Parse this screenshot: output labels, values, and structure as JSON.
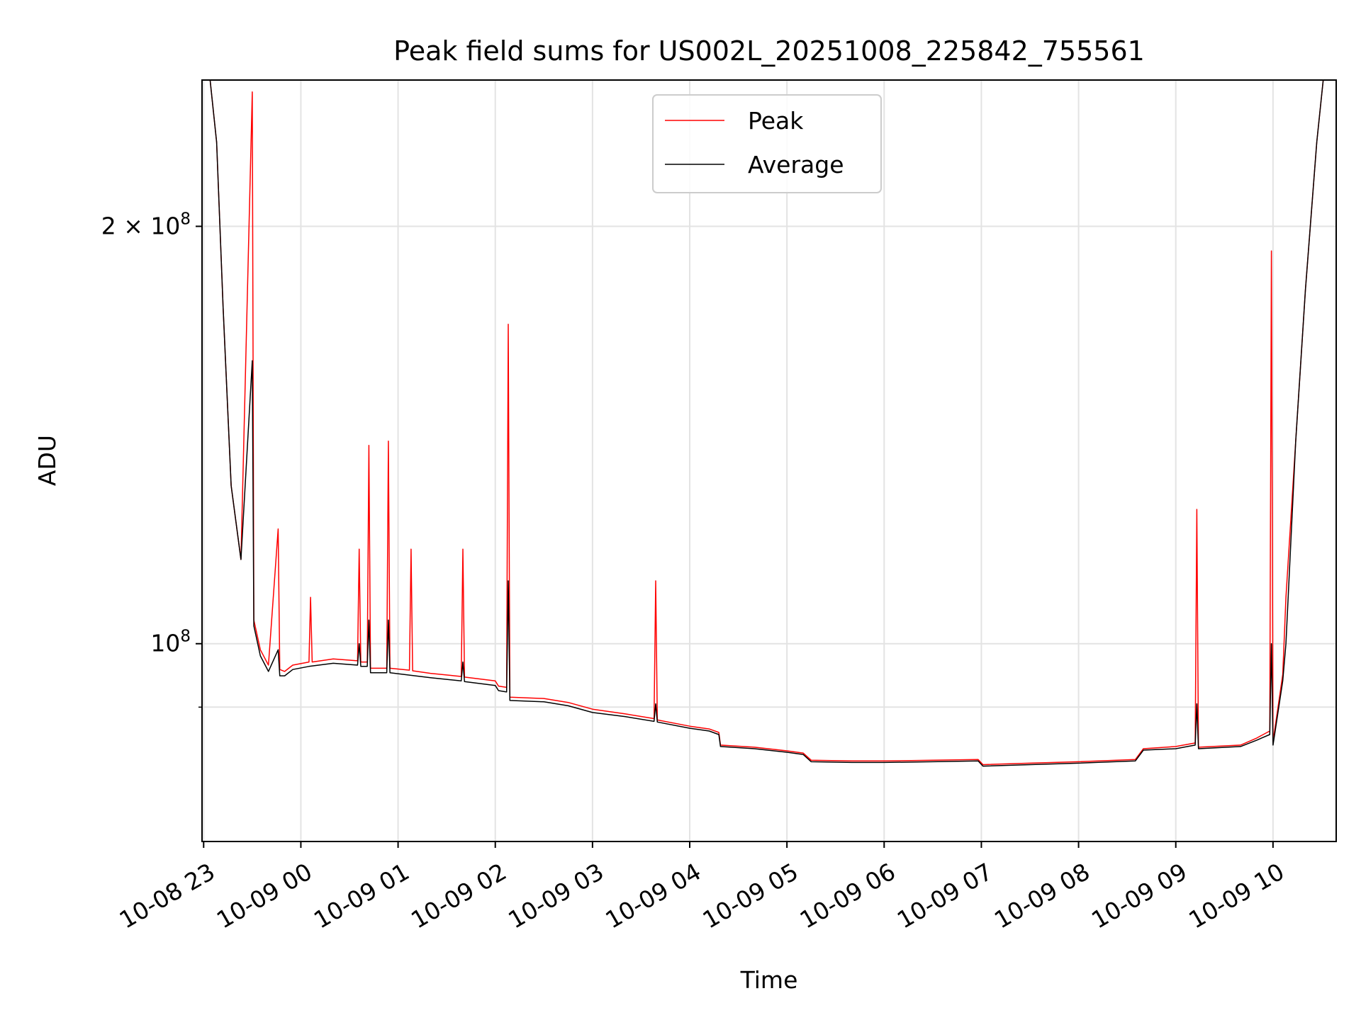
{
  "chart_data": {
    "type": "line",
    "title": "Peak field sums for US002L_20251008_225842_755561",
    "xlabel": "Time",
    "ylabel": "ADU",
    "y_scale": "log",
    "ylim": [
      72000000,
      255000000
    ],
    "xlim": [
      "2025-10-08 22:59",
      "2025-10-09 10:39"
    ],
    "grid": true,
    "legend_position": "upper center",
    "x_ticks": [
      {
        "t": "2025-10-08 23:00",
        "label": "10-08 23"
      },
      {
        "t": "2025-10-09 00:00",
        "label": "10-09 00"
      },
      {
        "t": "2025-10-09 01:00",
        "label": "10-09 01"
      },
      {
        "t": "2025-10-09 02:00",
        "label": "10-09 02"
      },
      {
        "t": "2025-10-09 03:00",
        "label": "10-09 03"
      },
      {
        "t": "2025-10-09 04:00",
        "label": "10-09 04"
      },
      {
        "t": "2025-10-09 05:00",
        "label": "10-09 05"
      },
      {
        "t": "2025-10-09 06:00",
        "label": "10-09 06"
      },
      {
        "t": "2025-10-09 07:00",
        "label": "10-09 07"
      },
      {
        "t": "2025-10-09 08:00",
        "label": "10-09 08"
      },
      {
        "t": "2025-10-09 09:00",
        "label": "10-09 09"
      },
      {
        "t": "2025-10-09 10:00",
        "label": "10-09 10"
      }
    ],
    "y_ticks": [
      {
        "value": 100000000,
        "label_base": "10",
        "label_exp": "8",
        "label_prefix": ""
      },
      {
        "value": 200000000,
        "label_base": "10",
        "label_exp": "8",
        "label_prefix": "2 × "
      }
    ],
    "y_minor_ticks": [
      90000000
    ],
    "series": [
      {
        "name": "Peak",
        "color": "#ff0000",
        "points": [
          [
            "2025-10-08 22:59",
            255000000
          ],
          [
            "2025-10-08 23:04",
            255000000
          ],
          [
            "2025-10-08 23:08",
            230000000
          ],
          [
            "2025-10-08 23:12",
            175000000
          ],
          [
            "2025-10-08 23:17",
            130000000
          ],
          [
            "2025-10-08 23:23",
            115000000
          ],
          [
            "2025-10-08 23:30",
            250000000
          ],
          [
            "2025-10-08 23:31",
            104000000
          ],
          [
            "2025-10-08 23:35",
            99000000
          ],
          [
            "2025-10-08 23:40",
            96500000
          ],
          [
            "2025-10-08 23:46",
            121000000
          ],
          [
            "2025-10-08 23:47",
            95800000
          ],
          [
            "2025-10-08 23:50",
            95500000
          ],
          [
            "2025-10-08 23:55",
            96500000
          ],
          [
            "2025-10-09 00:05",
            97000000
          ],
          [
            "2025-10-09 00:06",
            108000000
          ],
          [
            "2025-10-09 00:07",
            97000000
          ],
          [
            "2025-10-09 00:20",
            97500000
          ],
          [
            "2025-10-09 00:35",
            97200000
          ],
          [
            "2025-10-09 00:36",
            117000000
          ],
          [
            "2025-10-09 00:37",
            97000000
          ],
          [
            "2025-10-09 00:41",
            97000000
          ],
          [
            "2025-10-09 00:42",
            139000000
          ],
          [
            "2025-10-09 00:43",
            96000000
          ],
          [
            "2025-10-09 00:53",
            96000000
          ],
          [
            "2025-10-09 00:54",
            140000000
          ],
          [
            "2025-10-09 00:55",
            96000000
          ],
          [
            "2025-10-09 01:07",
            95700000
          ],
          [
            "2025-10-09 01:08",
            117000000
          ],
          [
            "2025-10-09 01:09",
            95600000
          ],
          [
            "2025-10-09 01:20",
            95200000
          ],
          [
            "2025-10-09 01:35",
            94800000
          ],
          [
            "2025-10-09 01:39",
            94700000
          ],
          [
            "2025-10-09 01:40",
            117000000
          ],
          [
            "2025-10-09 01:41",
            94600000
          ],
          [
            "2025-10-09 02:00",
            94000000
          ],
          [
            "2025-10-09 02:02",
            93200000
          ],
          [
            "2025-10-09 02:07",
            93000000
          ],
          [
            "2025-10-09 02:08",
            170000000
          ],
          [
            "2025-10-09 02:09",
            91500000
          ],
          [
            "2025-10-09 02:30",
            91300000
          ],
          [
            "2025-10-09 02:45",
            90700000
          ],
          [
            "2025-10-09 03:00",
            89700000
          ],
          [
            "2025-10-09 03:20",
            89000000
          ],
          [
            "2025-10-09 03:38",
            88300000
          ],
          [
            "2025-10-09 03:39",
            111000000
          ],
          [
            "2025-10-09 03:40",
            88100000
          ],
          [
            "2025-10-09 04:00",
            87200000
          ],
          [
            "2025-10-09 04:12",
            86800000
          ],
          [
            "2025-10-09 04:18",
            86300000
          ],
          [
            "2025-10-09 04:19",
            84500000
          ],
          [
            "2025-10-09 04:40",
            84200000
          ],
          [
            "2025-10-09 05:00",
            83700000
          ],
          [
            "2025-10-09 05:10",
            83400000
          ],
          [
            "2025-10-09 05:15",
            82400000
          ],
          [
            "2025-10-09 05:40",
            82300000
          ],
          [
            "2025-10-09 06:00",
            82300000
          ],
          [
            "2025-10-09 06:30",
            82400000
          ],
          [
            "2025-10-09 06:58",
            82500000
          ],
          [
            "2025-10-09 07:01",
            81800000
          ],
          [
            "2025-10-09 07:30",
            82000000
          ],
          [
            "2025-10-09 08:00",
            82200000
          ],
          [
            "2025-10-09 08:35",
            82500000
          ],
          [
            "2025-10-09 08:40",
            84000000
          ],
          [
            "2025-10-09 09:00",
            84300000
          ],
          [
            "2025-10-09 09:12",
            84800000
          ],
          [
            "2025-10-09 09:13",
            125000000
          ],
          [
            "2025-10-09 09:14",
            84200000
          ],
          [
            "2025-10-09 09:40",
            84500000
          ],
          [
            "2025-10-09 09:50",
            85500000
          ],
          [
            "2025-10-09 09:58",
            86500000
          ],
          [
            "2025-10-09 09:59",
            192000000
          ],
          [
            "2025-10-09 10:00",
            85000000
          ],
          [
            "2025-10-09 10:06",
            95000000
          ],
          [
            "2025-10-09 10:08",
            108000000
          ],
          [
            "2025-10-09 10:14",
            140000000
          ],
          [
            "2025-10-09 10:20",
            180000000
          ],
          [
            "2025-10-09 10:27",
            230000000
          ],
          [
            "2025-10-09 10:31",
            255000000
          ],
          [
            "2025-10-09 10:39",
            255000000
          ]
        ]
      },
      {
        "name": "Average",
        "color": "#000000",
        "points": [
          [
            "2025-10-08 22:59",
            255000000
          ],
          [
            "2025-10-08 23:04",
            255000000
          ],
          [
            "2025-10-08 23:08",
            230000000
          ],
          [
            "2025-10-08 23:12",
            175000000
          ],
          [
            "2025-10-08 23:17",
            130000000
          ],
          [
            "2025-10-08 23:23",
            115000000
          ],
          [
            "2025-10-08 23:30",
            160000000
          ],
          [
            "2025-10-08 23:31",
            103000000
          ],
          [
            "2025-10-08 23:35",
            98000000
          ],
          [
            "2025-10-08 23:40",
            95500000
          ],
          [
            "2025-10-08 23:46",
            99000000
          ],
          [
            "2025-10-08 23:47",
            94800000
          ],
          [
            "2025-10-08 23:50",
            94800000
          ],
          [
            "2025-10-08 23:55",
            95800000
          ],
          [
            "2025-10-09 00:05",
            96300000
          ],
          [
            "2025-10-09 00:20",
            96800000
          ],
          [
            "2025-10-09 00:35",
            96500000
          ],
          [
            "2025-10-09 00:36",
            100000000
          ],
          [
            "2025-10-09 00:37",
            96300000
          ],
          [
            "2025-10-09 00:41",
            96300000
          ],
          [
            "2025-10-09 00:42",
            104000000
          ],
          [
            "2025-10-09 00:43",
            95300000
          ],
          [
            "2025-10-09 00:53",
            95300000
          ],
          [
            "2025-10-09 00:54",
            104000000
          ],
          [
            "2025-10-09 00:55",
            95300000
          ],
          [
            "2025-10-09 01:20",
            94500000
          ],
          [
            "2025-10-09 01:39",
            94000000
          ],
          [
            "2025-10-09 01:40",
            97000000
          ],
          [
            "2025-10-09 01:41",
            93900000
          ],
          [
            "2025-10-09 02:00",
            93300000
          ],
          [
            "2025-10-09 02:02",
            92500000
          ],
          [
            "2025-10-09 02:07",
            92300000
          ],
          [
            "2025-10-09 02:08",
            111000000
          ],
          [
            "2025-10-09 02:09",
            91000000
          ],
          [
            "2025-10-09 02:30",
            90800000
          ],
          [
            "2025-10-09 02:45",
            90200000
          ],
          [
            "2025-10-09 03:00",
            89200000
          ],
          [
            "2025-10-09 03:20",
            88600000
          ],
          [
            "2025-10-09 03:38",
            87900000
          ],
          [
            "2025-10-09 03:39",
            90500000
          ],
          [
            "2025-10-09 03:40",
            87800000
          ],
          [
            "2025-10-09 04:00",
            86900000
          ],
          [
            "2025-10-09 04:12",
            86500000
          ],
          [
            "2025-10-09 04:18",
            86000000
          ],
          [
            "2025-10-09 04:19",
            84300000
          ],
          [
            "2025-10-09 04:40",
            84000000
          ],
          [
            "2025-10-09 05:00",
            83500000
          ],
          [
            "2025-10-09 05:10",
            83200000
          ],
          [
            "2025-10-09 05:15",
            82200000
          ],
          [
            "2025-10-09 05:40",
            82100000
          ],
          [
            "2025-10-09 06:00",
            82100000
          ],
          [
            "2025-10-09 06:30",
            82200000
          ],
          [
            "2025-10-09 06:58",
            82300000
          ],
          [
            "2025-10-09 07:01",
            81600000
          ],
          [
            "2025-10-09 07:30",
            81800000
          ],
          [
            "2025-10-09 08:00",
            82000000
          ],
          [
            "2025-10-09 08:35",
            82300000
          ],
          [
            "2025-10-09 08:40",
            83800000
          ],
          [
            "2025-10-09 09:00",
            84000000
          ],
          [
            "2025-10-09 09:12",
            84500000
          ],
          [
            "2025-10-09 09:13",
            90500000
          ],
          [
            "2025-10-09 09:14",
            84000000
          ],
          [
            "2025-10-09 09:40",
            84300000
          ],
          [
            "2025-10-09 09:50",
            85200000
          ],
          [
            "2025-10-09 09:58",
            86000000
          ],
          [
            "2025-10-09 09:59",
            100000000
          ],
          [
            "2025-10-09 10:00",
            84500000
          ],
          [
            "2025-10-09 10:06",
            94000000
          ],
          [
            "2025-10-09 10:08",
            100000000
          ],
          [
            "2025-10-09 10:14",
            140000000
          ],
          [
            "2025-10-09 10:20",
            180000000
          ],
          [
            "2025-10-09 10:27",
            230000000
          ],
          [
            "2025-10-09 10:31",
            255000000
          ],
          [
            "2025-10-09 10:39",
            255000000
          ]
        ]
      }
    ]
  }
}
